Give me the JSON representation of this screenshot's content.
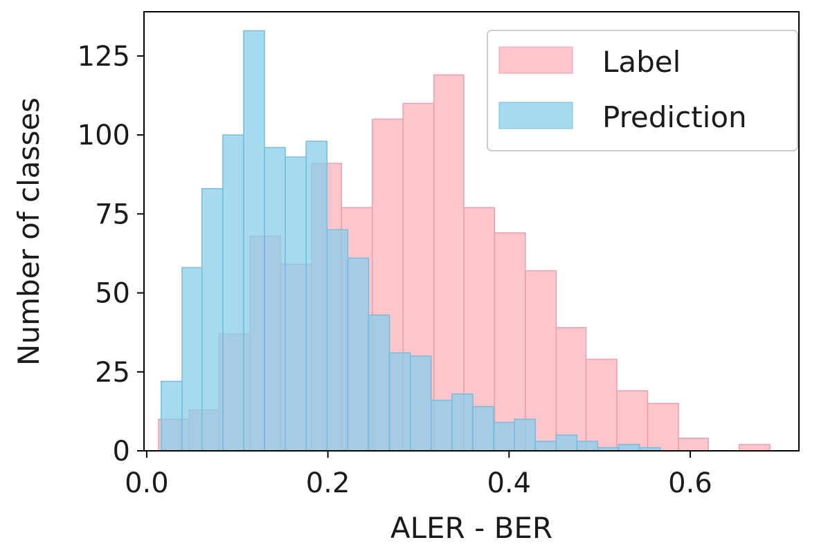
{
  "chart_data": {
    "type": "bar",
    "subtype": "overlapping-histogram",
    "title": "",
    "xlabel": "ALER - BER",
    "ylabel": "Number of classes",
    "xlim": [
      -0.003,
      0.72
    ],
    "ylim": [
      0,
      139
    ],
    "xticks": [
      0.0,
      0.2,
      0.4,
      0.6
    ],
    "xtick_labels": [
      "0.0",
      "0.2",
      "0.4",
      "0.6"
    ],
    "yticks": [
      0,
      25,
      50,
      75,
      100,
      125
    ],
    "ytick_labels": [
      "0",
      "25",
      "50",
      "75",
      "100",
      "125"
    ],
    "grid": false,
    "legend_position": "top-right",
    "series": [
      {
        "name": "Label",
        "color": "#ffb6c1",
        "edge_color": "#e8a0ab",
        "opacity": 0.8,
        "bins": [
          {
            "x0": 0.013,
            "x1": 0.047,
            "value": 10
          },
          {
            "x0": 0.047,
            "x1": 0.08,
            "value": 13
          },
          {
            "x0": 0.08,
            "x1": 0.114,
            "value": 37
          },
          {
            "x0": 0.114,
            "x1": 0.148,
            "value": 68
          },
          {
            "x0": 0.148,
            "x1": 0.182,
            "value": 59
          },
          {
            "x0": 0.182,
            "x1": 0.215,
            "value": 91
          },
          {
            "x0": 0.215,
            "x1": 0.249,
            "value": 77
          },
          {
            "x0": 0.249,
            "x1": 0.283,
            "value": 105
          },
          {
            "x0": 0.283,
            "x1": 0.317,
            "value": 110
          },
          {
            "x0": 0.317,
            "x1": 0.35,
            "value": 119
          },
          {
            "x0": 0.35,
            "x1": 0.384,
            "value": 77
          },
          {
            "x0": 0.384,
            "x1": 0.418,
            "value": 69
          },
          {
            "x0": 0.418,
            "x1": 0.452,
            "value": 57
          },
          {
            "x0": 0.452,
            "x1": 0.485,
            "value": 39
          },
          {
            "x0": 0.485,
            "x1": 0.519,
            "value": 29
          },
          {
            "x0": 0.519,
            "x1": 0.553,
            "value": 19
          },
          {
            "x0": 0.553,
            "x1": 0.587,
            "value": 15
          },
          {
            "x0": 0.587,
            "x1": 0.62,
            "value": 4
          },
          {
            "x0": 0.62,
            "x1": 0.654,
            "value": 0
          },
          {
            "x0": 0.654,
            "x1": 0.688,
            "value": 2
          }
        ]
      },
      {
        "name": "Prediction",
        "color": "#87ceeb",
        "edge_color": "#76bcd8",
        "opacity": 0.75,
        "bins": [
          {
            "x0": 0.016,
            "x1": 0.039,
            "value": 22
          },
          {
            "x0": 0.039,
            "x1": 0.061,
            "value": 58
          },
          {
            "x0": 0.061,
            "x1": 0.084,
            "value": 83
          },
          {
            "x0": 0.084,
            "x1": 0.107,
            "value": 100
          },
          {
            "x0": 0.107,
            "x1": 0.13,
            "value": 133
          },
          {
            "x0": 0.13,
            "x1": 0.153,
            "value": 96
          },
          {
            "x0": 0.153,
            "x1": 0.176,
            "value": 93
          },
          {
            "x0": 0.176,
            "x1": 0.199,
            "value": 98
          },
          {
            "x0": 0.199,
            "x1": 0.222,
            "value": 70
          },
          {
            "x0": 0.222,
            "x1": 0.245,
            "value": 61
          },
          {
            "x0": 0.245,
            "x1": 0.268,
            "value": 43
          },
          {
            "x0": 0.268,
            "x1": 0.291,
            "value": 31
          },
          {
            "x0": 0.291,
            "x1": 0.314,
            "value": 30
          },
          {
            "x0": 0.314,
            "x1": 0.337,
            "value": 16
          },
          {
            "x0": 0.337,
            "x1": 0.36,
            "value": 18
          },
          {
            "x0": 0.36,
            "x1": 0.383,
            "value": 14
          },
          {
            "x0": 0.383,
            "x1": 0.406,
            "value": 9
          },
          {
            "x0": 0.406,
            "x1": 0.429,
            "value": 10
          },
          {
            "x0": 0.429,
            "x1": 0.452,
            "value": 3
          },
          {
            "x0": 0.452,
            "x1": 0.475,
            "value": 5
          },
          {
            "x0": 0.475,
            "x1": 0.498,
            "value": 3
          },
          {
            "x0": 0.498,
            "x1": 0.521,
            "value": 1
          },
          {
            "x0": 0.521,
            "x1": 0.544,
            "value": 2
          },
          {
            "x0": 0.544,
            "x1": 0.567,
            "value": 1
          }
        ]
      }
    ]
  }
}
